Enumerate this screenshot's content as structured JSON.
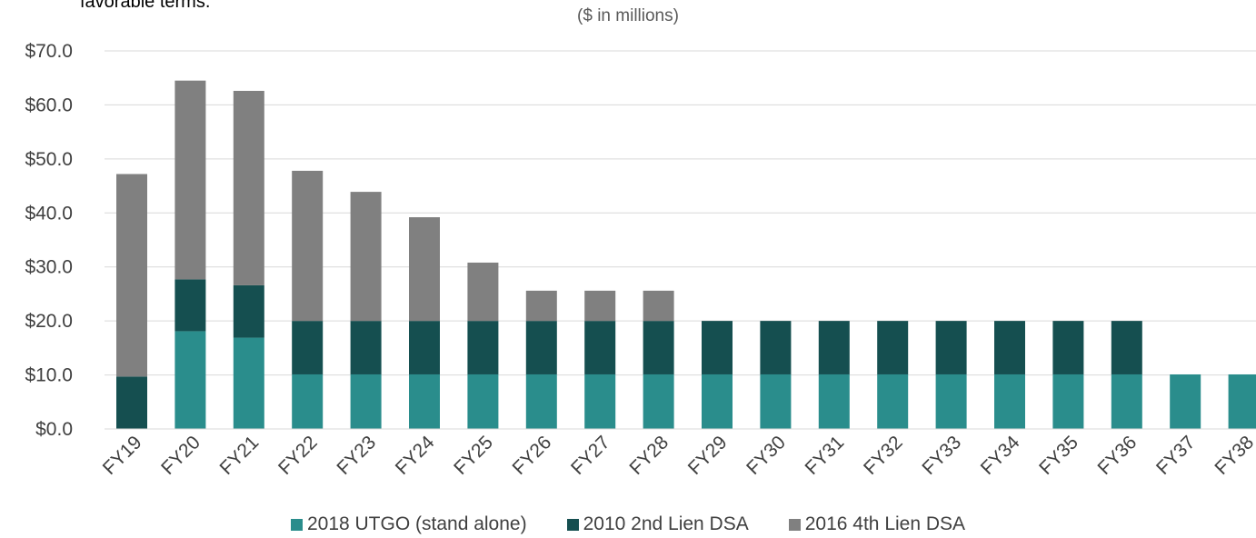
{
  "page": {
    "note": "favorable terms.",
    "units": "($ in millions)"
  },
  "chart_data": {
    "type": "bar",
    "stacked": true,
    "title": "",
    "xlabel": "",
    "ylabel": "",
    "ylim": [
      0,
      70
    ],
    "ytick_values": [
      0,
      10,
      20,
      30,
      40,
      50,
      60,
      70
    ],
    "ytick_labels": [
      "$0.0",
      "$10.0",
      "$20.0",
      "$30.0",
      "$40.0",
      "$50.0",
      "$60.0",
      "$70.0"
    ],
    "grid": true,
    "legend_position": "bottom",
    "categories": [
      "FY19",
      "FY20",
      "FY21",
      "FY22",
      "FY23",
      "FY24",
      "FY25",
      "FY26",
      "FY27",
      "FY28",
      "FY29",
      "FY30",
      "FY31",
      "FY32",
      "FY33",
      "FY34",
      "FY35",
      "FY36",
      "FY37",
      "FY38"
    ],
    "series": [
      {
        "name": "2018 UTGO (stand alone)",
        "color": "#2A8D8C",
        "values": [
          0,
          18.1,
          16.9,
          10.1,
          10.1,
          10.1,
          10.1,
          10.1,
          10.1,
          10.1,
          10.1,
          10.1,
          10.1,
          10.1,
          10.1,
          10.1,
          10.1,
          10.1,
          10.1,
          10.1
        ]
      },
      {
        "name": "2010 2nd Lien DSA",
        "color": "#154F50",
        "values": [
          9.7,
          9.6,
          9.7,
          9.9,
          9.9,
          9.9,
          9.9,
          9.9,
          9.9,
          9.9,
          9.9,
          9.9,
          9.9,
          9.9,
          9.9,
          9.9,
          9.9,
          9.9,
          0,
          0
        ]
      },
      {
        "name": "2016 4th Lien DSA",
        "color": "#808080",
        "values": [
          37.5,
          36.8,
          36.0,
          27.8,
          23.9,
          19.2,
          10.8,
          5.6,
          5.6,
          5.6,
          0,
          0,
          0,
          0,
          0,
          0,
          0,
          0,
          0,
          0
        ]
      }
    ]
  }
}
